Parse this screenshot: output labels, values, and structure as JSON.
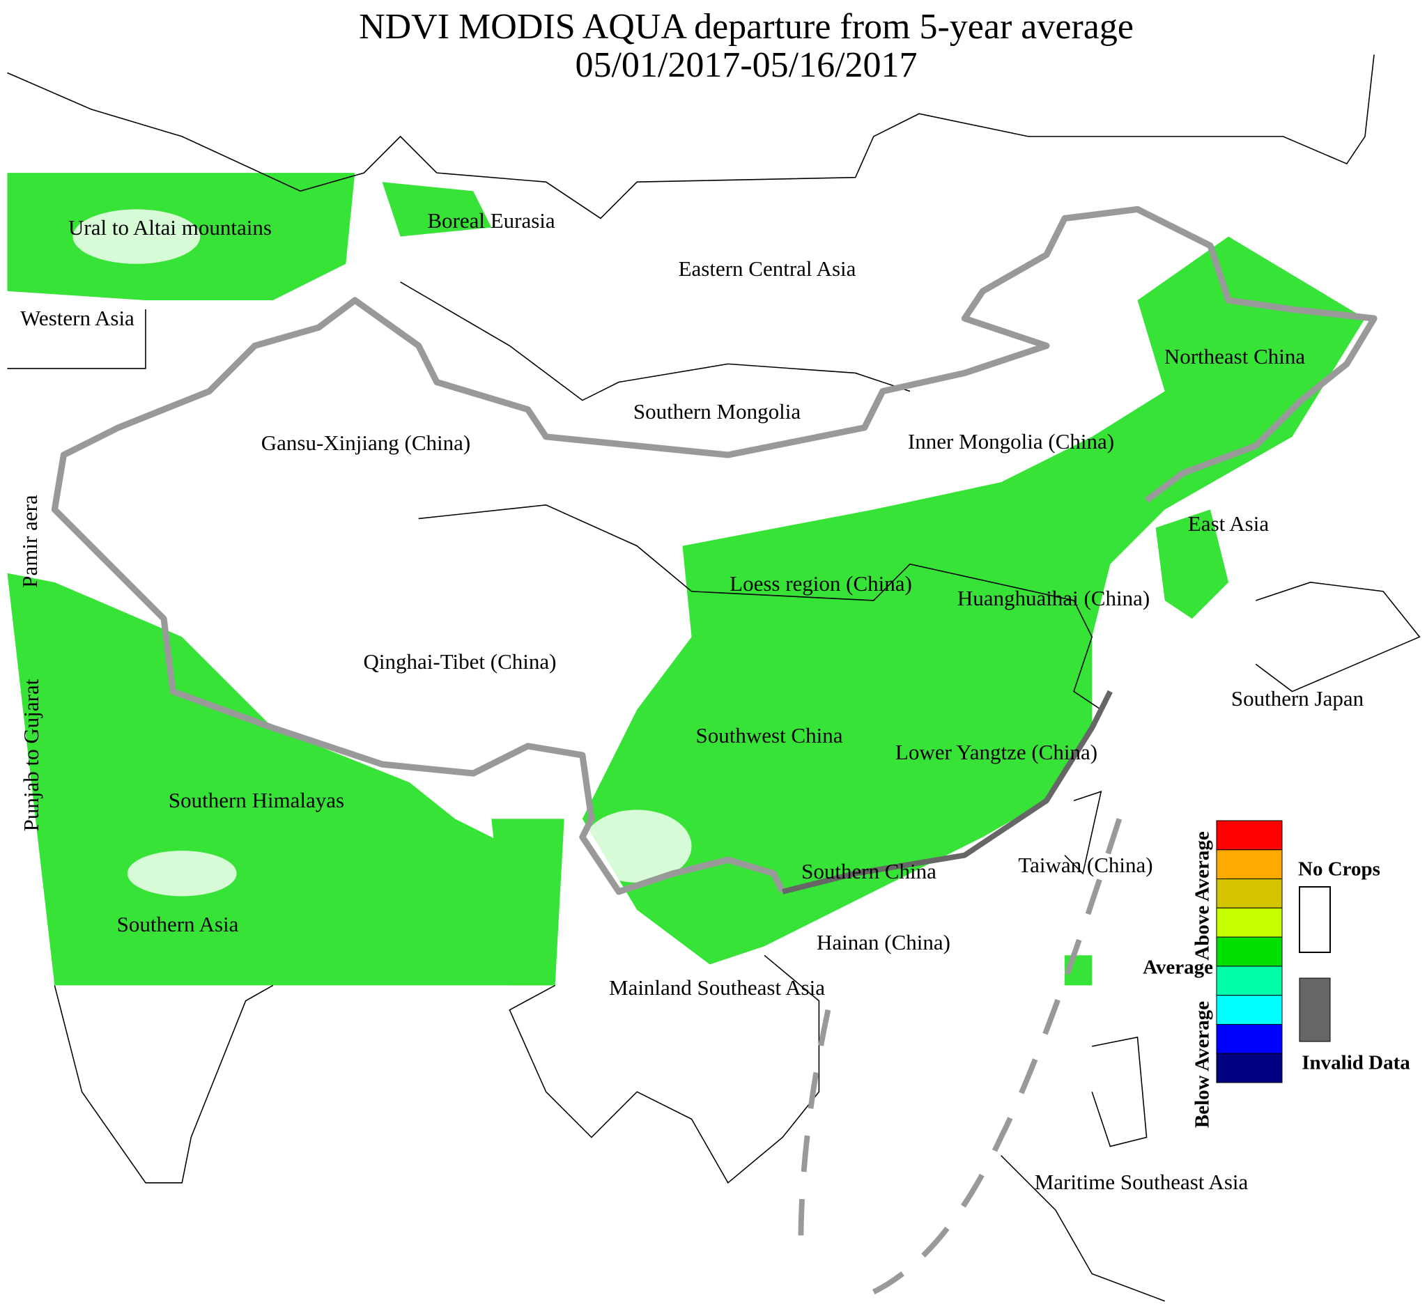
{
  "title": "NDVI MODIS AQUA departure from 5-year average",
  "subtitle": "05/01/2017-05/16/2017",
  "regions": [
    "Ural to Altai mountains",
    "Boreal Eurasia",
    "Eastern Central Asia",
    "Western Asia",
    "Northeast China",
    "Southern Mongolia",
    "Gansu-Xinjiang (China)",
    "Inner Mongolia (China)",
    "Pamir aera",
    "East Asia",
    "Loess region (China)",
    "Huanghuaihai (China)",
    "Qinghai-Tibet (China)",
    "Southern Japan",
    "Punjab to Gujarat",
    "Southwest China",
    "Lower Yangtze (China)",
    "Southern Himalayas",
    "Southern China",
    "Taiwan (China)",
    "Southern Asia",
    "Hainan (China)",
    "Mainland Southeast Asia",
    "Maritime Southeast Asia"
  ],
  "legend": {
    "above": "Above Average",
    "average": "Average",
    "below": "Below Average",
    "colors": [
      "#ff0000",
      "#ffaa00",
      "#d4c400",
      "#c8ff00",
      "#00e000",
      "#00ffaa",
      "#00ffff",
      "#0000ff",
      "#000080"
    ],
    "no_crops": "No Crops",
    "no_crops_color": "#ffffff",
    "invalid": "Invalid Data",
    "invalid_color": "#666666"
  }
}
